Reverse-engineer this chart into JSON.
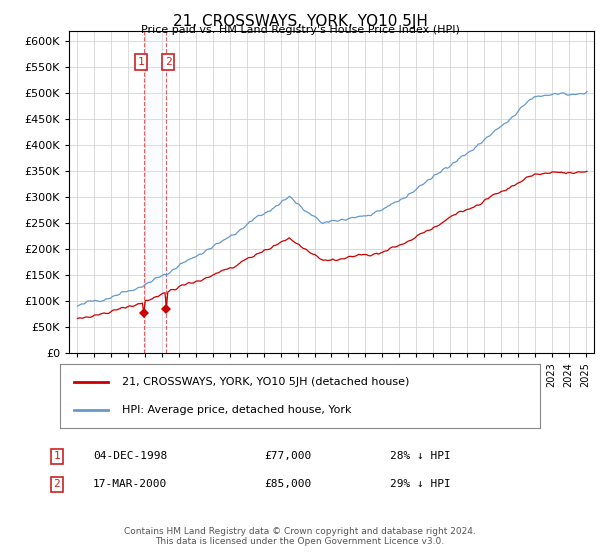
{
  "title": "21, CROSSWAYS, YORK, YO10 5JH",
  "subtitle": "Price paid vs. HM Land Registry's House Price Index (HPI)",
  "red_label": "21, CROSSWAYS, YORK, YO10 5JH (detached house)",
  "blue_label": "HPI: Average price, detached house, York",
  "footer": "Contains HM Land Registry data © Crown copyright and database right 2024.\nThis data is licensed under the Open Government Licence v3.0.",
  "sale1_date": "04-DEC-1998",
  "sale1_price": 77000,
  "sale1_label": "28% ↓ HPI",
  "sale2_date": "17-MAR-2000",
  "sale2_price": 85000,
  "sale2_label": "29% ↓ HPI",
  "sale1_x": 1998.92,
  "sale2_x": 2000.21,
  "ylim_min": 0,
  "ylim_max": 620000,
  "xlim_min": 1994.5,
  "xlim_max": 2025.5,
  "background_color": "#ffffff",
  "grid_color": "#cccccc",
  "red_color": "#cc0000",
  "blue_color": "#6699cc",
  "shade_color": "#ddeeff"
}
